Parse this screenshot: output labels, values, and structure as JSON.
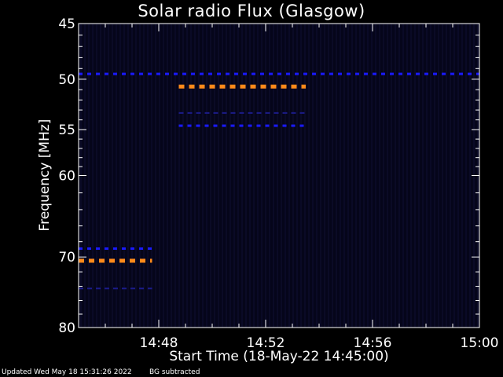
{
  "chart_data": {
    "type": "heatmap",
    "title": "Solar radio Flux (Glasgow)",
    "xlabel": "Start Time (18-May-22 14:45:00)",
    "ylabel": "Frequency [MHz]",
    "xlim": [
      "14:45:00",
      "15:00:00"
    ],
    "ylim": [
      45,
      80
    ],
    "x_ticks": [
      "14:48",
      "14:52",
      "14:56",
      "15:00"
    ],
    "y_ticks": [
      45,
      50,
      55,
      60,
      70,
      80
    ],
    "background_color": "#05051a",
    "colors": {
      "bright": "#ff8a1a",
      "medium": "#1a1aff",
      "faint": "#1c1c8a",
      "axis": "#ffffff"
    },
    "segments": [
      {
        "freq": 49.5,
        "start": "14:45:00",
        "end": "15:00:00",
        "level": "medium"
      },
      {
        "freq": 50.7,
        "start": "14:48:45",
        "end": "14:53:30",
        "level": "bright"
      },
      {
        "freq": 53.3,
        "start": "14:48:45",
        "end": "14:53:30",
        "level": "faint"
      },
      {
        "freq": 54.6,
        "start": "14:48:45",
        "end": "14:53:30",
        "level": "medium"
      },
      {
        "freq": 68.9,
        "start": "14:45:00",
        "end": "14:47:45",
        "level": "medium"
      },
      {
        "freq": 70.5,
        "start": "14:45:00",
        "end": "14:47:45",
        "level": "bright"
      },
      {
        "freq": 74.3,
        "start": "14:45:00",
        "end": "14:47:45",
        "level": "faint"
      }
    ]
  },
  "footer": {
    "updated": "Updated Wed May 18 15:31:26 2022",
    "note": "BG subtracted"
  }
}
